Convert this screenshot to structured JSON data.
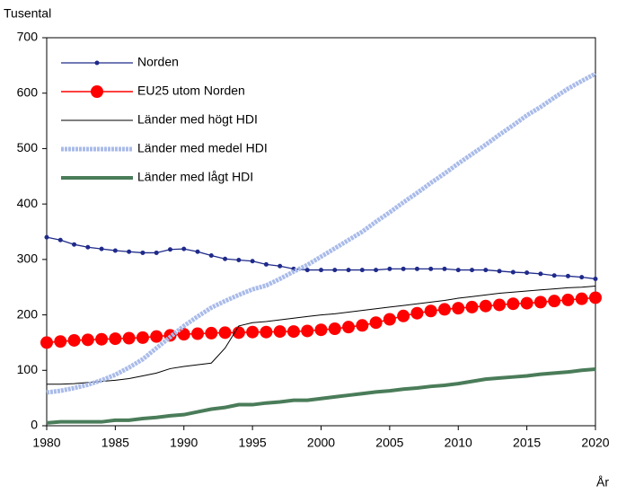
{
  "chart_data": {
    "type": "line",
    "ylabel": "Tusental",
    "xlabel": "År",
    "x": [
      1980,
      1981,
      1982,
      1983,
      1984,
      1985,
      1986,
      1987,
      1988,
      1989,
      1990,
      1991,
      1992,
      1993,
      1994,
      1995,
      1996,
      1997,
      1998,
      1999,
      2000,
      2001,
      2002,
      2003,
      2004,
      2005,
      2006,
      2007,
      2008,
      2009,
      2010,
      2011,
      2012,
      2013,
      2014,
      2015,
      2016,
      2017,
      2018,
      2019,
      2020
    ],
    "xlim": [
      1980,
      2020
    ],
    "xticks": [
      1980,
      1985,
      1990,
      1995,
      2000,
      2005,
      2010,
      2015,
      2020
    ],
    "ylim": [
      0,
      700
    ],
    "yticks": [
      0,
      100,
      200,
      300,
      400,
      500,
      600,
      700
    ],
    "grid": false,
    "legend": "upper left",
    "series": [
      {
        "name": "Norden",
        "color": "#1f2a8a",
        "values": [
          340,
          335,
          327,
          322,
          319,
          316,
          314,
          312,
          312,
          318,
          319,
          314,
          307,
          301,
          299,
          297,
          291,
          288,
          283,
          281,
          281,
          281,
          281,
          281,
          281,
          283,
          283,
          283,
          283,
          283,
          281,
          281,
          281,
          279,
          277,
          276,
          274,
          271,
          270,
          268,
          265
        ]
      },
      {
        "name": "EU25 utom Norden",
        "color": "#ff0000",
        "values": [
          150,
          152,
          154,
          155,
          156,
          157,
          158,
          159,
          161,
          163,
          165,
          166,
          167,
          168,
          168,
          169,
          169,
          170,
          170,
          171,
          173,
          175,
          178,
          181,
          186,
          192,
          198,
          203,
          207,
          210,
          212,
          214,
          216,
          218,
          220,
          221,
          223,
          225,
          227,
          229,
          231
        ]
      },
      {
        "name": "Länder med högt HDI",
        "color": "#000000",
        "values": [
          75,
          75,
          76,
          78,
          80,
          82,
          85,
          90,
          95,
          103,
          107,
          110,
          113,
          140,
          180,
          186,
          188,
          191,
          194,
          197,
          200,
          202,
          205,
          208,
          211,
          214,
          217,
          220,
          223,
          226,
          230,
          233,
          236,
          239,
          241,
          243,
          245,
          247,
          249,
          250,
          252
        ]
      },
      {
        "name": "Länder med medel HDI",
        "color": "#a9bbe9",
        "values": [
          60,
          63,
          68,
          74,
          82,
          92,
          105,
          120,
          140,
          160,
          180,
          197,
          213,
          225,
          236,
          246,
          253,
          265,
          278,
          290,
          305,
          320,
          335,
          350,
          368,
          385,
          403,
          420,
          438,
          455,
          473,
          490,
          507,
          525,
          542,
          560,
          575,
          592,
          608,
          622,
          635
        ]
      },
      {
        "name": "Länder med lågt HDI",
        "color": "#4a7c59",
        "values": [
          5,
          7,
          7,
          7,
          7,
          10,
          10,
          13,
          15,
          18,
          20,
          25,
          30,
          33,
          38,
          38,
          41,
          43,
          46,
          46,
          49,
          52,
          55,
          58,
          61,
          63,
          66,
          68,
          71,
          73,
          76,
          80,
          84,
          86,
          88,
          90,
          93,
          95,
          97,
          100,
          102
        ]
      }
    ]
  }
}
